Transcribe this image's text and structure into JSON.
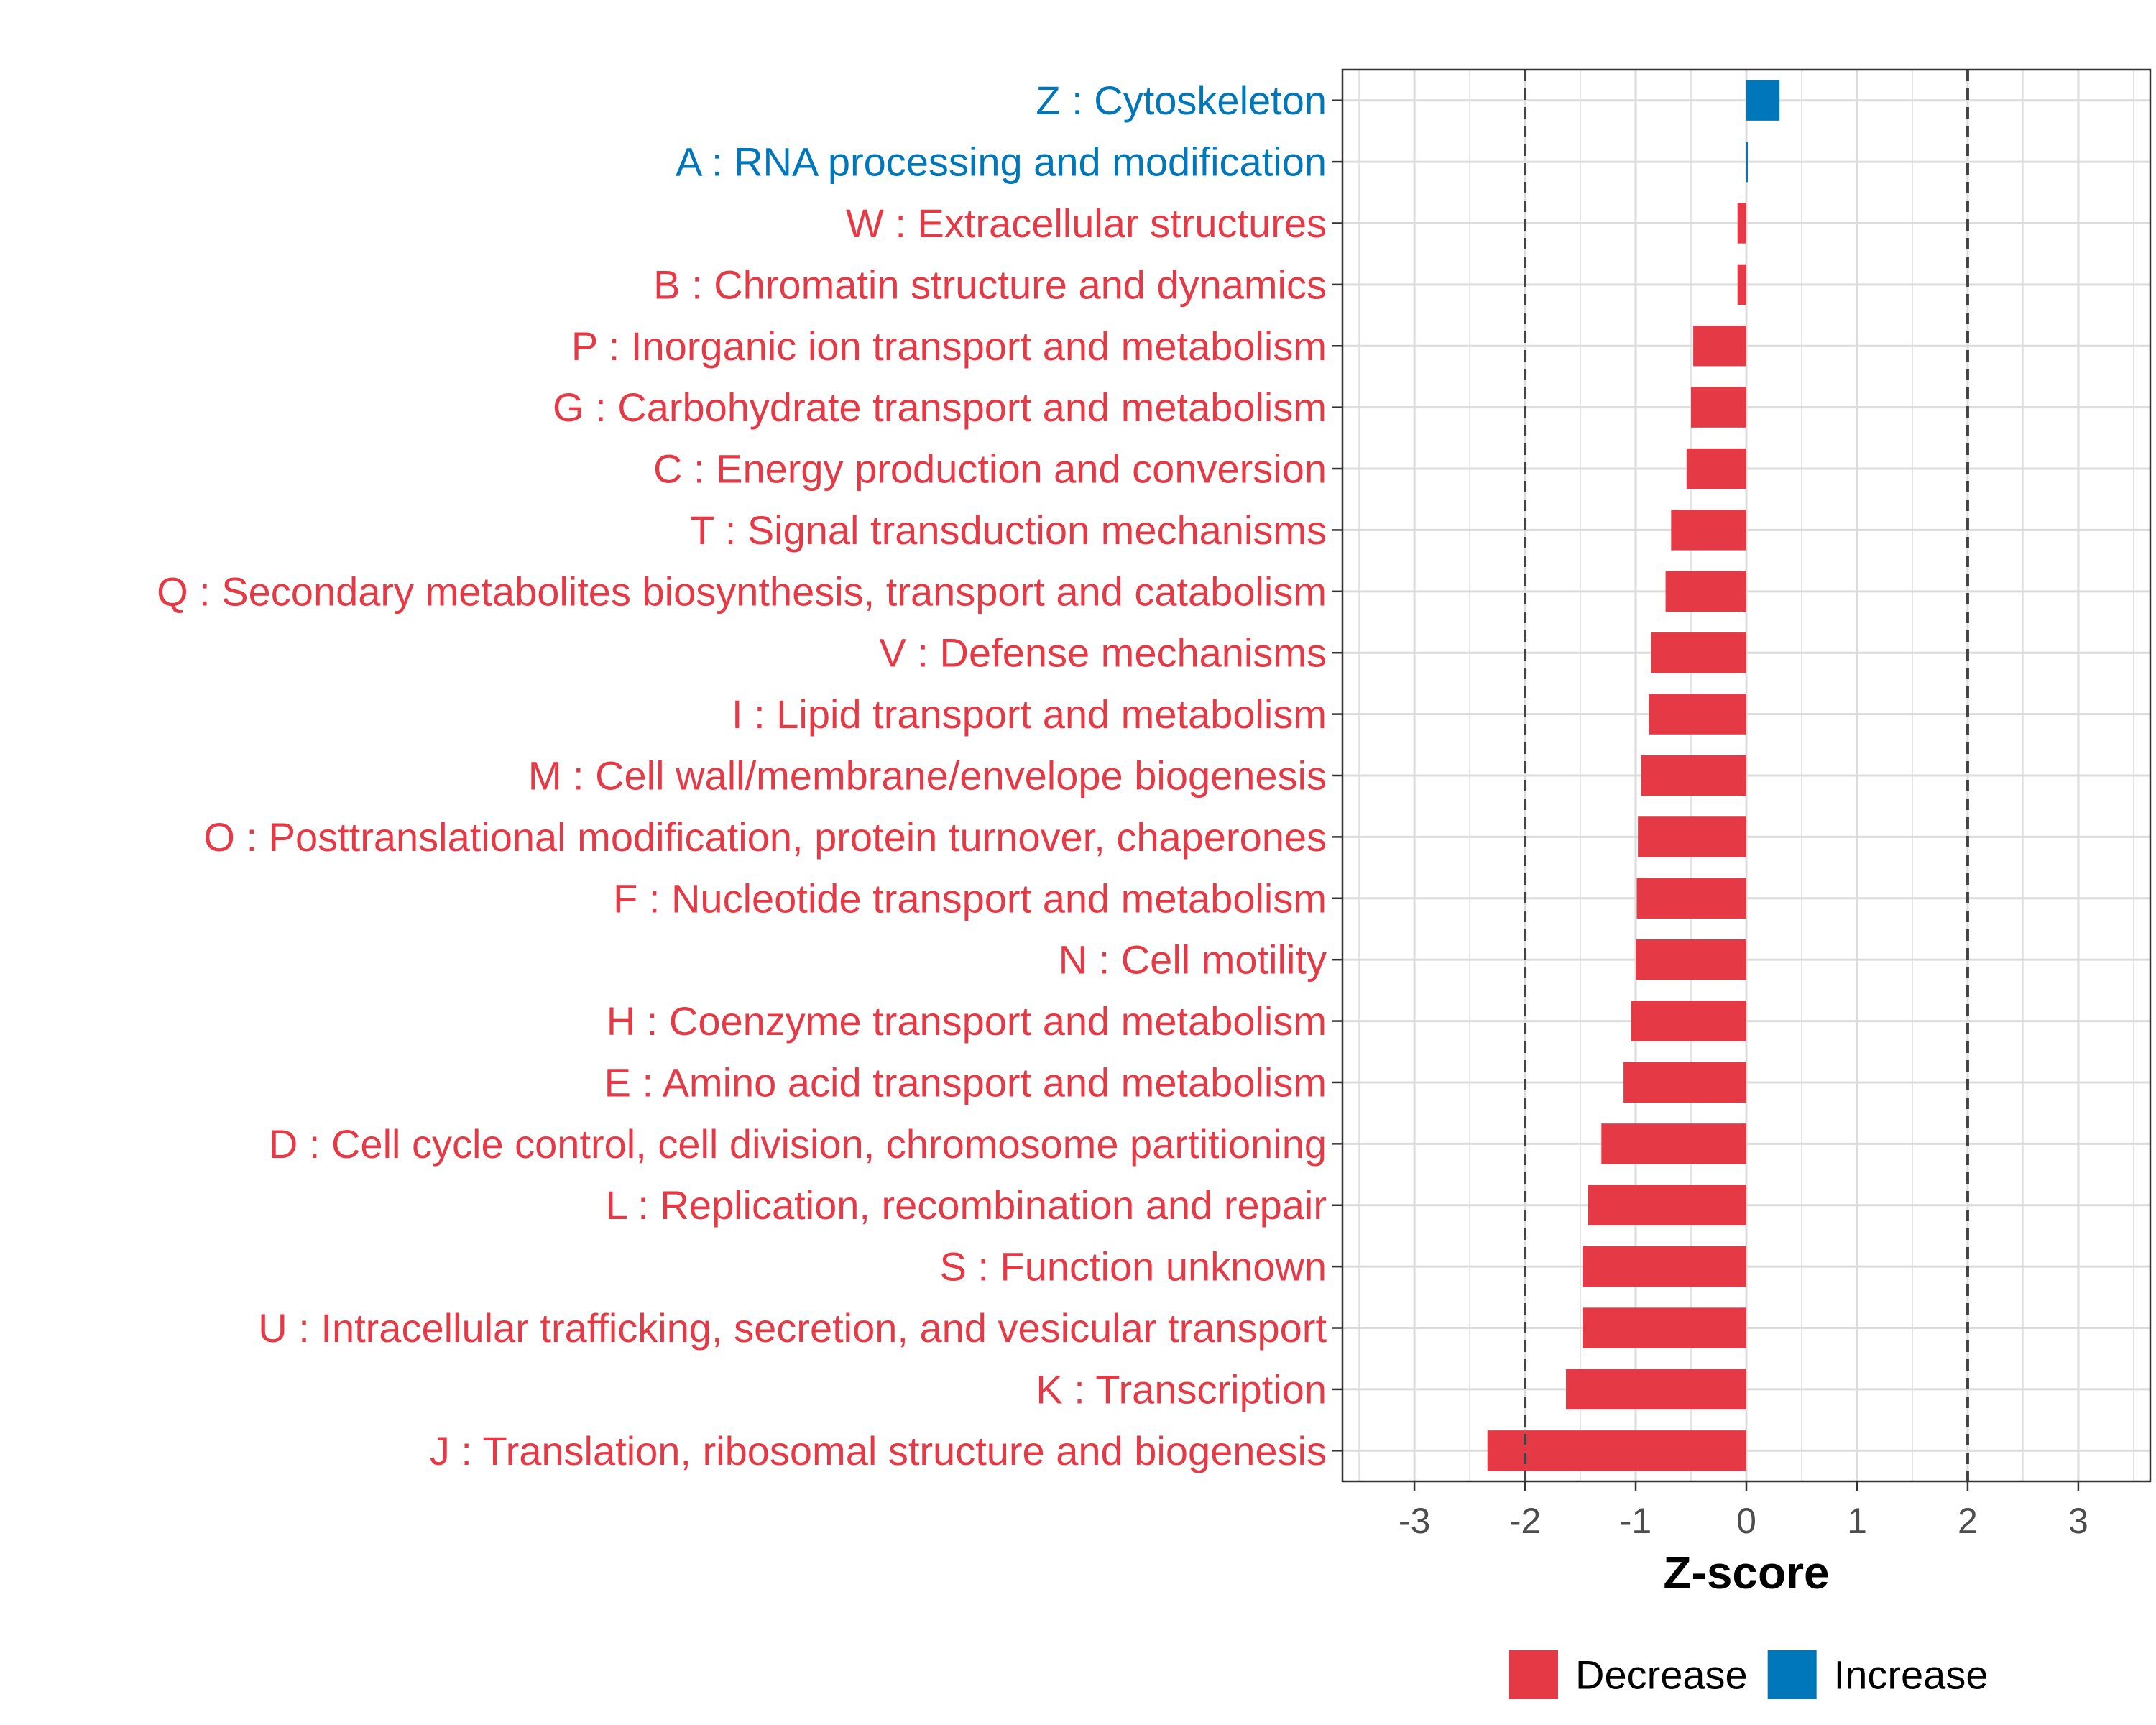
{
  "chart_data": {
    "type": "bar",
    "orientation": "horizontal",
    "title": "",
    "xlabel": "Z-score",
    "ylabel": "",
    "xlim": [
      -3.65,
      3.65
    ],
    "x_ticks": [
      -3,
      -2,
      -1,
      0,
      1,
      2,
      3
    ],
    "threshold_lines": [
      -2,
      2
    ],
    "grid": true,
    "legend_position": "bottom",
    "colors": {
      "Decrease": "#e63946",
      "Increase": "#0077bb"
    },
    "legend": [
      {
        "label": "Decrease",
        "color": "#e63946"
      },
      {
        "label": "Increase",
        "color": "#0077bb"
      }
    ],
    "categories": [
      "Z : Cytoskeleton",
      "A : RNA processing and modification",
      "W : Extracellular structures",
      "B : Chromatin structure and dynamics",
      "P : Inorganic ion transport and metabolism",
      "G : Carbohydrate transport and metabolism",
      "C : Energy production and conversion",
      "T : Signal transduction mechanisms",
      "Q : Secondary metabolites biosynthesis, transport and catabolism",
      "V : Defense mechanisms",
      "I : Lipid transport and metabolism",
      "M : Cell wall/membrane/envelope biogenesis",
      "O : Posttranslational modification, protein turnover, chaperones",
      "F : Nucleotide transport and metabolism",
      "N : Cell motility",
      "H : Coenzyme transport and metabolism",
      "E : Amino acid transport and metabolism",
      "D : Cell cycle control, cell division, chromosome partitioning",
      "L : Replication, recombination and repair",
      "S : Function unknown",
      "U : Intracellular trafficking, secretion, and vesicular transport",
      "K : Transcription",
      "J : Translation, ribosomal structure and biogenesis"
    ],
    "values": [
      0.3,
      0.01,
      -0.08,
      -0.08,
      -0.48,
      -0.5,
      -0.54,
      -0.68,
      -0.73,
      -0.86,
      -0.88,
      -0.95,
      -0.98,
      -0.99,
      -1.0,
      -1.04,
      -1.11,
      -1.31,
      -1.43,
      -1.48,
      -1.48,
      -1.63,
      -2.34
    ],
    "groups": [
      "Increase",
      "Increase",
      "Decrease",
      "Decrease",
      "Decrease",
      "Decrease",
      "Decrease",
      "Decrease",
      "Decrease",
      "Decrease",
      "Decrease",
      "Decrease",
      "Decrease",
      "Decrease",
      "Decrease",
      "Decrease",
      "Decrease",
      "Decrease",
      "Decrease",
      "Decrease",
      "Decrease",
      "Decrease",
      "Decrease"
    ]
  }
}
